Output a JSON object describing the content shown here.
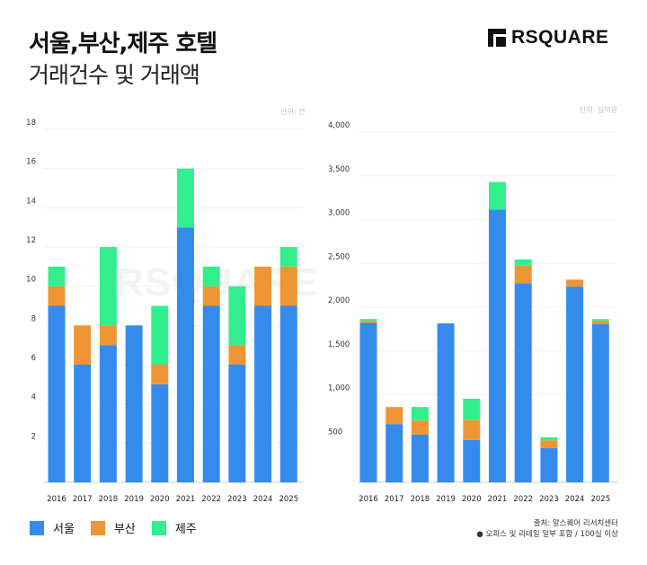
{
  "header": {
    "title_line1": "서울,부산,제주 호텔",
    "title_line2": "거래건수 및 거래액",
    "logo_text": "RSQUARE"
  },
  "watermark": "RSQUARE",
  "colors": {
    "서울": "#358BEC",
    "부산": "#EE9535",
    "제주": "#33EE8C"
  },
  "legend": [
    {
      "name": "서울",
      "color": "#358BEC"
    },
    {
      "name": "부산",
      "color": "#EE9535"
    },
    {
      "name": "제주",
      "color": "#33EE8C"
    }
  ],
  "footer": {
    "source": "출처: 알스퀘어 리서치센터",
    "note": "● 오피스 및 리테일 일부 포함 / 100실 이상"
  },
  "chart_data": [
    {
      "type": "bar",
      "stacked": true,
      "unit_label": "단위: 건",
      "categories": [
        "2016",
        "2017",
        "2018",
        "2019",
        "2020",
        "2021",
        "2022",
        "2023",
        "2024",
        "2025"
      ],
      "series": [
        {
          "name": "서울",
          "values": [
            9,
            6,
            7,
            8,
            5,
            13,
            9,
            6,
            9,
            9
          ]
        },
        {
          "name": "부산",
          "values": [
            1,
            2,
            1,
            0,
            1,
            0,
            1,
            1,
            2,
            2
          ]
        },
        {
          "name": "제주",
          "values": [
            1,
            0,
            4,
            0,
            3,
            3,
            1,
            3,
            0,
            1
          ]
        }
      ],
      "ylim": [
        0,
        18
      ],
      "yticks": [
        "2",
        "4",
        "6",
        "8",
        "10",
        "12",
        "14",
        "16",
        "18"
      ],
      "ytick_values": [
        2,
        4,
        6,
        8,
        10,
        12,
        14,
        16,
        18
      ],
      "grid": true
    },
    {
      "type": "bar",
      "stacked": true,
      "unit_label": "단위: 십억원",
      "categories": [
        "2016",
        "2017",
        "2018",
        "2019",
        "2020",
        "2021",
        "2022",
        "2023",
        "2024",
        "2025"
      ],
      "series": [
        {
          "name": "서울",
          "values": [
            1820,
            665,
            545,
            1815,
            485,
            3115,
            2275,
            390,
            2235,
            1805
          ]
        },
        {
          "name": "부산",
          "values": [
            25,
            195,
            160,
            0,
            230,
            0,
            200,
            90,
            80,
            40
          ]
        },
        {
          "name": "제주",
          "values": [
            20,
            0,
            155,
            0,
            240,
            315,
            70,
            35,
            0,
            20
          ]
        }
      ],
      "ylim": [
        0,
        4000
      ],
      "yticks": [
        "500",
        "1,000",
        "1,500",
        "2,000",
        "2,500",
        "3,000",
        "3,500",
        "4,000"
      ],
      "ytick_values": [
        500,
        1000,
        1500,
        2000,
        2500,
        3000,
        3500,
        4000
      ],
      "grid": true
    }
  ]
}
